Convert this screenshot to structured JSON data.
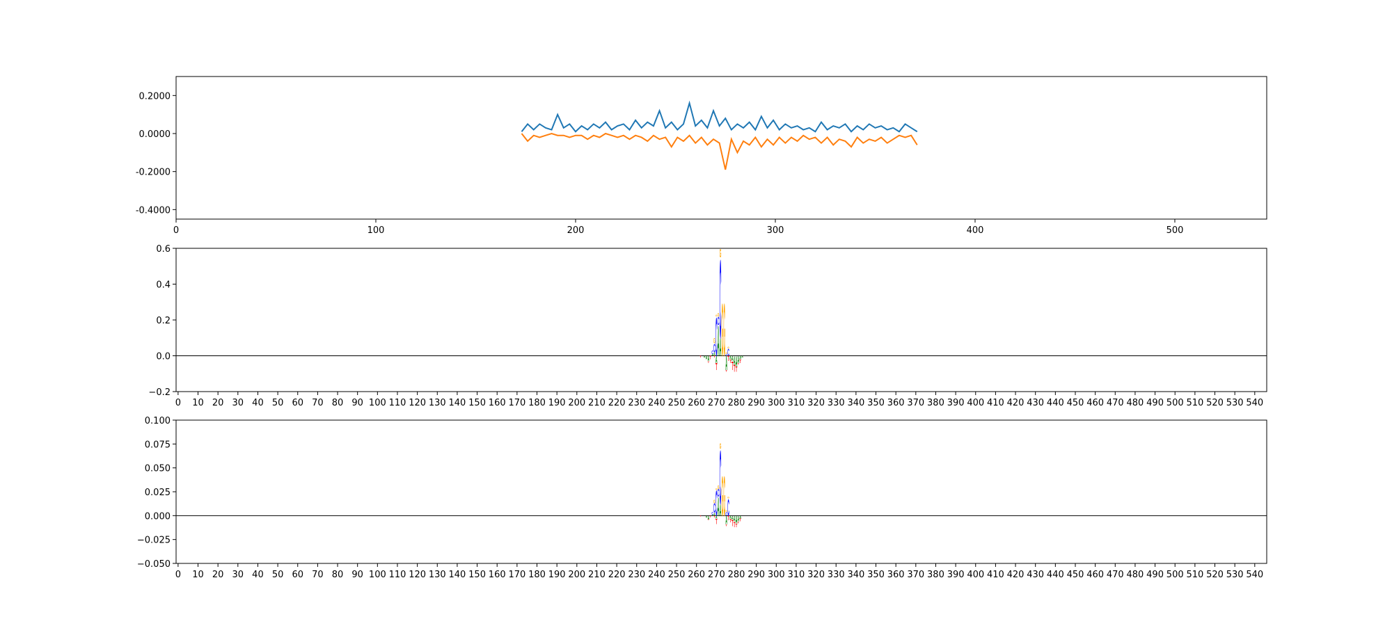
{
  "chart_data": [
    {
      "type": "line",
      "x": [
        173,
        176,
        179,
        182,
        185,
        188,
        191,
        194,
        197,
        200,
        203,
        206,
        209,
        212,
        215,
        218,
        221,
        224,
        227,
        230,
        233,
        236,
        239,
        242,
        245,
        248,
        251,
        254,
        257,
        260,
        263,
        266,
        269,
        272,
        275,
        278,
        281,
        284,
        287,
        290,
        293,
        296,
        299,
        302,
        305,
        308,
        311,
        314,
        317,
        320,
        323,
        326,
        329,
        332,
        335,
        338,
        341,
        344,
        347,
        350,
        353,
        356,
        359,
        362,
        365,
        368,
        371
      ],
      "series": [
        {
          "color": "#1f77b4",
          "values": [
            0.01,
            0.05,
            0.02,
            0.05,
            0.03,
            0.02,
            0.1,
            0.03,
            0.05,
            0.01,
            0.04,
            0.02,
            0.05,
            0.03,
            0.06,
            0.02,
            0.04,
            0.05,
            0.02,
            0.07,
            0.03,
            0.06,
            0.04,
            0.12,
            0.03,
            0.06,
            0.02,
            0.05,
            0.16,
            0.04,
            0.07,
            0.03,
            0.12,
            0.04,
            0.08,
            0.02,
            0.05,
            0.03,
            0.06,
            0.02,
            0.09,
            0.03,
            0.07,
            0.02,
            0.05,
            0.03,
            0.04,
            0.02,
            0.03,
            0.01,
            0.06,
            0.02,
            0.04,
            0.03,
            0.05,
            0.01,
            0.04,
            0.02,
            0.05,
            0.03,
            0.04,
            0.02,
            0.03,
            0.01,
            0.05,
            0.03,
            0.01
          ]
        },
        {
          "color": "#ff7f0e",
          "values": [
            0.0,
            -0.04,
            -0.01,
            -0.02,
            -0.01,
            0.0,
            -0.01,
            -0.01,
            -0.02,
            -0.01,
            -0.01,
            -0.03,
            -0.01,
            -0.02,
            0.0,
            -0.01,
            -0.02,
            -0.01,
            -0.03,
            -0.01,
            -0.02,
            -0.04,
            -0.01,
            -0.03,
            -0.02,
            -0.07,
            -0.02,
            -0.04,
            -0.01,
            -0.05,
            -0.02,
            -0.06,
            -0.03,
            -0.05,
            -0.19,
            -0.03,
            -0.1,
            -0.04,
            -0.06,
            -0.02,
            -0.07,
            -0.03,
            -0.06,
            -0.02,
            -0.05,
            -0.02,
            -0.04,
            -0.01,
            -0.03,
            -0.02,
            -0.05,
            -0.02,
            -0.06,
            -0.03,
            -0.04,
            -0.07,
            -0.02,
            -0.05,
            -0.03,
            -0.04,
            -0.02,
            -0.05,
            -0.03,
            -0.01,
            -0.02,
            -0.01,
            -0.06
          ]
        }
      ],
      "xlim": [
        0,
        546
      ],
      "xticks": [
        0,
        100,
        200,
        300,
        400,
        500
      ],
      "ylim": [
        -0.45,
        0.3
      ],
      "yticks": [
        {
          "value": 0.2,
          "label": "0.2000"
        },
        {
          "value": 0,
          "label": "0.0000"
        },
        {
          "value": -0.2,
          "label": "-0.2000"
        },
        {
          "value": -0.4,
          "label": "-0.4000"
        }
      ]
    },
    {
      "type": "logo",
      "x": [
        262,
        263,
        264,
        265,
        266,
        267,
        268,
        269,
        270,
        271,
        272,
        273,
        274,
        275,
        276,
        277,
        278,
        279,
        280,
        281,
        282,
        283,
        284,
        285
      ],
      "series": [
        {
          "name": "A",
          "color": "#008000",
          "values": [
            0,
            0,
            -0.01,
            -0.02,
            -0.03,
            0,
            0.01,
            0.02,
            -0.04,
            0.17,
            0.1,
            0,
            0,
            -0.08,
            0,
            -0.02,
            -0.03,
            -0.05,
            -0.06,
            -0.04,
            -0.02,
            -0.01,
            0,
            0
          ]
        },
        {
          "name": "C",
          "color": "#0000ff",
          "values": [
            0,
            0,
            0,
            0,
            0,
            0,
            0.02,
            0.05,
            0.22,
            0.05,
            0.45,
            0,
            0,
            0.01,
            0.04,
            0,
            0,
            0,
            0,
            0,
            0,
            0,
            0,
            0
          ]
        },
        {
          "name": "G",
          "color": "#ffa500",
          "values": [
            0,
            0,
            0,
            0,
            0,
            0,
            0,
            0.03,
            0.01,
            0.02,
            0.05,
            0.3,
            0.3,
            0.01,
            0.01,
            0,
            0,
            0,
            0,
            0,
            0,
            0,
            0,
            0
          ]
        },
        {
          "name": "T",
          "color": "#ff0000",
          "values": [
            -0.01,
            0,
            0,
            0,
            -0.01,
            -0.02,
            0,
            -0.01,
            -0.04,
            0,
            0,
            0,
            0,
            -0.01,
            -0.03,
            -0.02,
            -0.05,
            -0.04,
            -0.03,
            -0.01,
            -0.02,
            0,
            0,
            0
          ]
        }
      ],
      "xlim": [
        -1,
        546
      ],
      "xticks": [
        0,
        10,
        20,
        30,
        40,
        50,
        60,
        70,
        80,
        90,
        100,
        110,
        120,
        130,
        140,
        150,
        160,
        170,
        180,
        190,
        200,
        210,
        220,
        230,
        240,
        250,
        260,
        270,
        280,
        290,
        300,
        310,
        320,
        330,
        340,
        350,
        360,
        370,
        380,
        390,
        400,
        410,
        420,
        430,
        440,
        450,
        460,
        470,
        480,
        490,
        500,
        510,
        520,
        530,
        540
      ],
      "ylim": [
        -0.2,
        0.6
      ],
      "yticks": [
        {
          "value": -0.2,
          "label": "−0.2"
        },
        {
          "value": 0,
          "label": "0.0"
        },
        0.2,
        0.4,
        0.6
      ]
    },
    {
      "type": "logo",
      "x": [
        262,
        263,
        264,
        265,
        266,
        267,
        268,
        269,
        270,
        271,
        272,
        273,
        274,
        275,
        276,
        277,
        278,
        279,
        280,
        281,
        282,
        283,
        284,
        285
      ],
      "series": [
        {
          "name": "A",
          "color": "#008000",
          "values": [
            0,
            0,
            0,
            -0.002,
            -0.004,
            0,
            0.001,
            0.003,
            -0.003,
            0.02,
            0.012,
            0,
            0,
            -0.009,
            0,
            -0.003,
            -0.004,
            -0.006,
            -0.008,
            -0.006,
            -0.003,
            0,
            0,
            0
          ]
        },
        {
          "name": "C",
          "color": "#0000ff",
          "values": [
            0,
            0,
            0,
            0,
            0,
            0,
            0.003,
            0.01,
            0.027,
            0.008,
            0.058,
            0,
            0,
            0.004,
            0.018,
            0,
            0,
            0,
            0,
            0,
            0,
            0,
            0,
            0
          ]
        },
        {
          "name": "G",
          "color": "#ffa500",
          "values": [
            0,
            0,
            0,
            0,
            0,
            0,
            0,
            0.004,
            0.002,
            0.004,
            0.006,
            0.043,
            0.043,
            0.002,
            0.002,
            0,
            0,
            0,
            0,
            0,
            0,
            0,
            0,
            0
          ]
        },
        {
          "name": "T",
          "color": "#ff0000",
          "values": [
            -0.001,
            0,
            0,
            0,
            -0.001,
            -0.002,
            0,
            -0.002,
            -0.006,
            0,
            0,
            0,
            0,
            -0.002,
            -0.005,
            -0.004,
            -0.007,
            -0.006,
            -0.004,
            -0.002,
            -0.003,
            0,
            0,
            0
          ]
        }
      ],
      "xlim": [
        -1,
        546
      ],
      "xticks": [
        0,
        10,
        20,
        30,
        40,
        50,
        60,
        70,
        80,
        90,
        100,
        110,
        120,
        130,
        140,
        150,
        160,
        170,
        180,
        190,
        200,
        210,
        220,
        230,
        240,
        250,
        260,
        270,
        280,
        290,
        300,
        310,
        320,
        330,
        340,
        350,
        360,
        370,
        380,
        390,
        400,
        410,
        420,
        430,
        440,
        450,
        460,
        470,
        480,
        490,
        500,
        510,
        520,
        530,
        540
      ],
      "ylim": [
        -0.05,
        0.1
      ],
      "yticks": [
        {
          "value": -0.05,
          "label": "−0.050"
        },
        {
          "value": -0.025,
          "label": "−0.025"
        },
        {
          "value": 0,
          "label": "0.000"
        },
        {
          "value": 0.025,
          "label": "0.025"
        },
        {
          "value": 0.05,
          "label": "0.050"
        },
        {
          "value": 0.075,
          "label": "0.075"
        },
        {
          "value": 0.1,
          "label": "0.100"
        }
      ]
    }
  ]
}
